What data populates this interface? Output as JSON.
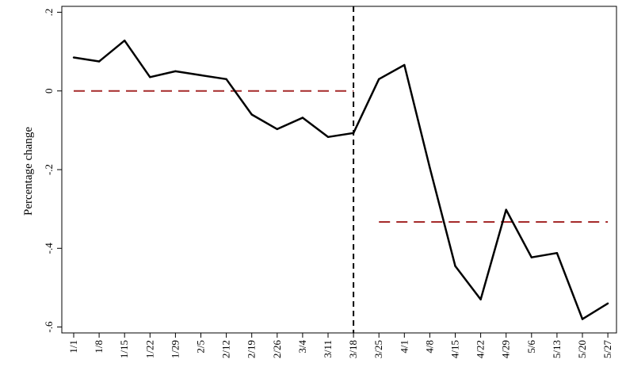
{
  "chart_data": {
    "type": "line",
    "title": "",
    "xlabel": "",
    "ylabel": "Percentage change",
    "categories": [
      "1/1",
      "1/8",
      "1/15",
      "1/22",
      "1/29",
      "2/5",
      "2/12",
      "2/19",
      "2/26",
      "3/4",
      "3/11",
      "3/18",
      "3/25",
      "4/1",
      "4/8",
      "4/15",
      "4/22",
      "4/29",
      "5/6",
      "5/13",
      "5/20",
      "5/27"
    ],
    "series": [
      {
        "values": [
          0.085,
          0.075,
          0.128,
          0.035,
          0.05,
          0.04,
          0.03,
          -0.06,
          -0.097,
          -0.068,
          -0.117,
          -0.107,
          0.03,
          0.066,
          -0.195,
          -0.445,
          -0.53,
          -0.302,
          -0.423,
          -0.412,
          -0.58,
          -0.54
        ],
        "color": "#000000"
      }
    ],
    "yticks": [
      {
        "value": 0.2,
        "label": ".2"
      },
      {
        "value": 0,
        "label": "0"
      },
      {
        "value": -0.2,
        "label": "-.2"
      },
      {
        "value": -0.4,
        "label": "-.4"
      },
      {
        "value": -0.6,
        "label": "-.6"
      }
    ],
    "ylim": [
      -0.615,
      0.215
    ],
    "event_line": {
      "category": "3/18",
      "color": "#000000",
      "style": "dashed"
    },
    "mean_lines": [
      {
        "from": "1/1",
        "to": "3/18",
        "value": 0.0,
        "color": "#a52a2a",
        "style": "dashed"
      },
      {
        "from": "3/25",
        "to": "5/27",
        "value": -0.333,
        "color": "#a52a2a",
        "style": "dashed"
      }
    ],
    "grid": false,
    "legend": "none"
  }
}
